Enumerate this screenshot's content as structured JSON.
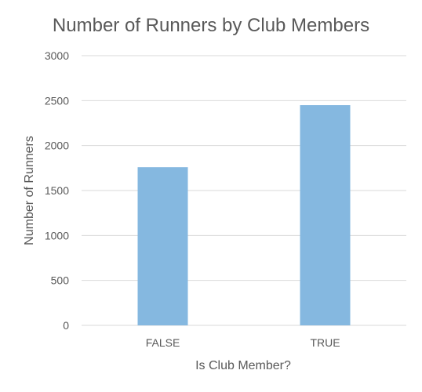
{
  "chart_data": {
    "type": "bar",
    "title": "Number of Runners by Club Members",
    "xlabel": "Is Club Member?",
    "ylabel": "Number of Runners",
    "categories": [
      "FALSE",
      "TRUE"
    ],
    "values": [
      1760,
      2450
    ],
    "ylim": [
      0,
      3000
    ],
    "yticks": [
      0,
      500,
      1000,
      1500,
      2000,
      2500,
      3000
    ],
    "grid": true,
    "legend": "none",
    "bar_color": "#85b8e0"
  }
}
